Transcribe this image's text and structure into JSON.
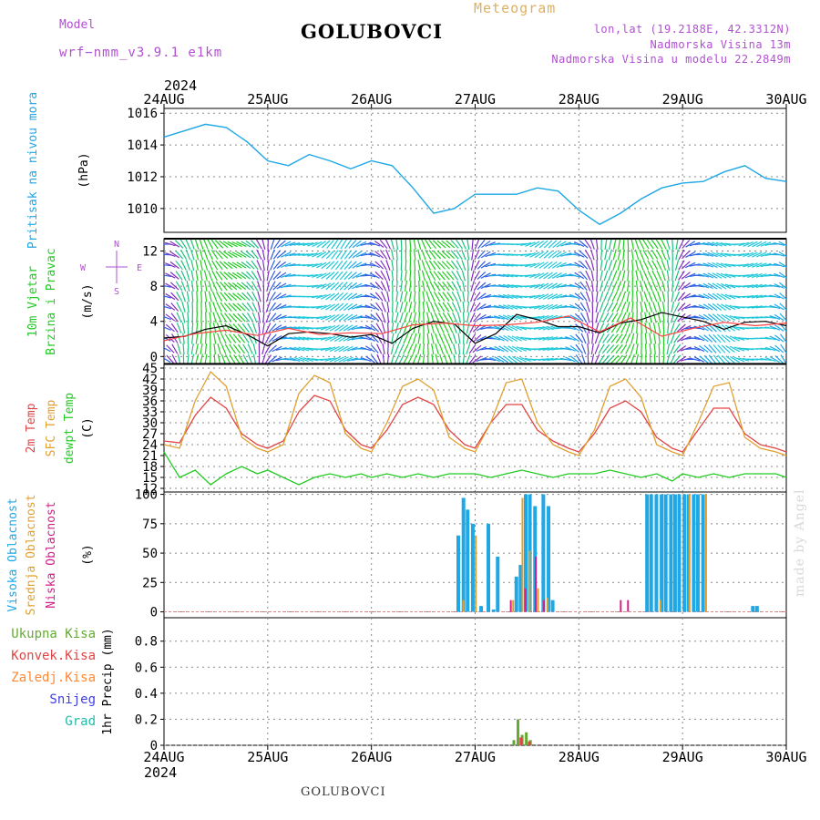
{
  "header": {
    "model_label": "Model",
    "model_name": "wrf−nmm_v3.9.1 e1km",
    "title": "GOLUBOVCI",
    "meteogram_label": "Meteogram",
    "lonlat": "lon,lat (19.2188E, 42.3312N)",
    "elevation": "Nadmorska Visina 13m",
    "model_elevation": "Nadmorska Visina u modelu 22.2849m",
    "footer_station": "GOLUBOVCI",
    "watermark": "made by Angel"
  },
  "colors": {
    "pressure": "#1fa8e6",
    "temp2m": "#e04545",
    "sfc_temp": "#e0a030",
    "dewpoint": "#22cc22",
    "wind_speed": "#000000",
    "wind_gust": "#ff4040",
    "purple_text": "#b050d0",
    "high_cloud": "#1fa8e6",
    "mid_cloud": "#e0a030",
    "low_cloud": "#d0208a",
    "total_precip": "#66aa33",
    "conv_precip": "#e04545",
    "frozen_precip": "#ff8833",
    "snow": "#4040e0",
    "hail": "#22bbaa"
  },
  "chart_data": [
    {
      "type": "line",
      "panel": "pressure",
      "ylabel_lines": [
        "Pritisak na nivou mora"
      ],
      "unit": "(hPa)",
      "x_ticks": [
        "24AUG",
        "25AUG",
        "26AUG",
        "27AUG",
        "28AUG",
        "29AUG",
        "30AUG"
      ],
      "x_year": "2024",
      "ylim": [
        1008.5,
        1016.3
      ],
      "yticks": [
        1010,
        1012,
        1014,
        1016
      ],
      "series": [
        {
          "color": "#1fa8e6",
          "x": [
            0,
            0.2,
            0.4,
            0.6,
            0.8,
            1,
            1.2,
            1.4,
            1.6,
            1.8,
            2,
            2.2,
            2.4,
            2.6,
            2.8,
            3,
            3.2,
            3.4,
            3.6,
            3.8,
            4,
            4.2,
            4.4,
            4.6,
            4.8,
            5,
            5.2,
            5.4,
            5.6,
            5.8,
            6
          ],
          "y": [
            1014.5,
            1014.9,
            1015.3,
            1015.1,
            1014.2,
            1013.0,
            1012.7,
            1013.4,
            1013.0,
            1012.5,
            1013.0,
            1012.7,
            1011.3,
            1009.7,
            1010.0,
            1010.9,
            1010.9,
            1010.9,
            1011.3,
            1011.1,
            1009.9,
            1009.0,
            1009.7,
            1010.6,
            1011.3,
            1011.6,
            1011.7,
            1012.3,
            1012.7,
            1011.9,
            1011.7
          ]
        }
      ]
    },
    {
      "type": "line",
      "panel": "wind",
      "ylabel_lines": [
        "10m Vjetar",
        "Brzina i Pravac"
      ],
      "unit": "(m/s)",
      "ylim": [
        -0.9,
        13.4
      ],
      "yticks": [
        0,
        4,
        8,
        12
      ],
      "compass": {
        "n": "N",
        "e": "E",
        "w": "W",
        "s": "S"
      },
      "series": [
        {
          "name": "speed",
          "color": "#000000",
          "x": [
            0,
            0.2,
            0.4,
            0.6,
            0.8,
            1,
            1.2,
            1.4,
            1.6,
            1.8,
            2,
            2.2,
            2.4,
            2.6,
            2.8,
            3,
            3.2,
            3.4,
            3.6,
            3.8,
            4,
            4.2,
            4.4,
            4.6,
            4.8,
            5,
            5.2,
            5.4,
            5.6,
            5.8,
            6
          ],
          "y": [
            2.1,
            2.3,
            3.1,
            3.5,
            2.5,
            1.2,
            2.6,
            2.8,
            2.6,
            2.2,
            2.5,
            1.5,
            3.2,
            4.0,
            3.7,
            1.5,
            2.6,
            4.8,
            4.2,
            3.4,
            3.4,
            2.7,
            3.8,
            4.2,
            5.0,
            4.5,
            4.0,
            3.1,
            3.9,
            4.0,
            3.5
          ]
        },
        {
          "name": "gust",
          "color": "#ff4040",
          "x": [
            0,
            0.3,
            0.6,
            0.9,
            1.2,
            1.5,
            1.8,
            2.1,
            2.4,
            2.7,
            3,
            3.3,
            3.6,
            3.9,
            4.2,
            4.5,
            4.8,
            5.1,
            5.4,
            5.7,
            6
          ],
          "y": [
            1.8,
            2.6,
            3.0,
            2.4,
            3.2,
            2.5,
            2.7,
            2.6,
            3.6,
            3.8,
            3.5,
            3.6,
            3.9,
            4.6,
            2.8,
            4.4,
            2.3,
            3.2,
            3.9,
            3.5,
            3.8
          ]
        }
      ]
    },
    {
      "type": "line",
      "panel": "temperature",
      "ylabel_lines": [
        "2m Temp",
        "SFC Temp",
        "dewpt Temp"
      ],
      "unit": "(C)",
      "ylim": [
        11,
        46
      ],
      "yticks": [
        12,
        15,
        18,
        21,
        24,
        27,
        30,
        33,
        36,
        39,
        42,
        45
      ],
      "series": [
        {
          "name": "2m Temp",
          "color": "#e04545",
          "x": [
            0,
            0.15,
            0.3,
            0.45,
            0.6,
            0.75,
            0.9,
            1,
            1.15,
            1.3,
            1.45,
            1.6,
            1.75,
            1.9,
            2,
            2.15,
            2.3,
            2.45,
            2.6,
            2.75,
            2.9,
            3,
            3.15,
            3.3,
            3.45,
            3.6,
            3.75,
            3.9,
            4,
            4.15,
            4.3,
            4.45,
            4.6,
            4.75,
            4.9,
            5,
            5.15,
            5.3,
            5.45,
            5.6,
            5.75,
            5.9,
            6
          ],
          "y": [
            25,
            24.5,
            32,
            37,
            34,
            27,
            24,
            23,
            25,
            33,
            37.5,
            36,
            28,
            24,
            23,
            28,
            35,
            37,
            35,
            28,
            24,
            23,
            30,
            35,
            35,
            28,
            25,
            23,
            22,
            27,
            34,
            36,
            33,
            26,
            23,
            22,
            28,
            34,
            34,
            27,
            24,
            23,
            22
          ]
        },
        {
          "name": "SFC Temp",
          "color": "#e0a030",
          "x": [
            0,
            0.15,
            0.3,
            0.45,
            0.6,
            0.75,
            0.9,
            1,
            1.15,
            1.3,
            1.45,
            1.6,
            1.75,
            1.9,
            2,
            2.15,
            2.3,
            2.45,
            2.6,
            2.75,
            2.9,
            3,
            3.15,
            3.3,
            3.45,
            3.6,
            3.75,
            3.9,
            4,
            4.15,
            4.3,
            4.45,
            4.6,
            4.75,
            4.9,
            5,
            5.15,
            5.3,
            5.45,
            5.6,
            5.75,
            5.9,
            6
          ],
          "y": [
            24,
            23,
            36,
            44,
            40,
            26,
            23,
            22,
            24,
            38,
            43,
            41,
            27,
            23,
            22,
            30,
            40,
            42,
            39,
            26,
            23,
            22,
            30,
            41,
            42,
            30,
            24,
            22,
            21,
            28,
            40,
            42,
            37,
            24,
            22,
            21,
            30,
            40,
            41,
            26,
            23,
            22,
            21
          ]
        },
        {
          "name": "dewpt Temp",
          "color": "#22cc22",
          "x": [
            0,
            0.15,
            0.3,
            0.45,
            0.6,
            0.75,
            0.9,
            1,
            1.15,
            1.3,
            1.45,
            1.6,
            1.75,
            1.9,
            2,
            2.15,
            2.3,
            2.45,
            2.6,
            2.75,
            2.9,
            3,
            3.15,
            3.3,
            3.45,
            3.6,
            3.75,
            3.9,
            4,
            4.15,
            4.3,
            4.45,
            4.6,
            4.75,
            4.9,
            5,
            5.15,
            5.3,
            5.45,
            5.6,
            5.75,
            5.9,
            6
          ],
          "y": [
            22,
            15,
            17,
            13,
            16,
            18,
            16,
            17,
            15,
            13,
            15,
            16,
            15,
            16,
            15,
            16,
            15,
            16,
            15,
            16,
            16,
            16,
            15,
            16,
            17,
            16,
            15,
            16,
            16,
            16,
            17,
            16,
            15,
            16,
            14,
            16,
            15,
            16,
            15,
            16,
            16,
            16,
            15
          ]
        }
      ]
    },
    {
      "type": "bar",
      "panel": "cloud",
      "ylabel_lines": [
        "Visoka Oblacnost",
        "Srednja Oblacnost",
        "Niska Oblacnost"
      ],
      "unit": "(%)",
      "ylim": [
        -5,
        102
      ],
      "yticks": [
        0,
        25,
        50,
        75,
        100
      ],
      "series": [
        {
          "name": "Visoka Oblacnost",
          "color": "#1fa8e6",
          "x": [
            2.82,
            2.87,
            2.91,
            2.96,
            3.04,
            3.11,
            3.16,
            3.2,
            3.38,
            3.42,
            3.47,
            3.51,
            3.56,
            3.64,
            3.69,
            3.73,
            4.64,
            4.68,
            4.73,
            4.78,
            4.82,
            4.87,
            4.91,
            4.95,
            5.0,
            5.04,
            5.09,
            5.13,
            5.18,
            5.66,
            5.7
          ],
          "values": [
            65,
            97,
            87,
            75,
            5,
            75,
            2,
            47,
            30,
            40,
            100,
            100,
            90,
            100,
            90,
            10,
            100,
            100,
            100,
            100,
            100,
            100,
            100,
            100,
            100,
            100,
            100,
            100,
            100,
            5,
            5
          ]
        },
        {
          "name": "Srednja Oblacnost",
          "color": "#e0a030",
          "x": [
            2.86,
            2.98,
            3.34,
            3.43,
            3.5,
            3.58,
            3.67,
            4.76,
            5.04,
            5.2
          ],
          "values": [
            10,
            65,
            10,
            97,
            52,
            20,
            12,
            10,
            100,
            100
          ]
        },
        {
          "name": "Niska Oblacnost",
          "color": "#d0208a",
          "x": [
            3.3,
            3.44,
            3.54,
            3.62,
            4.36,
            4.43
          ],
          "values": [
            10,
            20,
            47,
            10,
            10,
            10
          ]
        }
      ]
    },
    {
      "type": "bar",
      "panel": "precip",
      "ylabel_lines": [
        "Ukupna Kisa",
        "Konvek.Kisa",
        "Zaledj.Kisa",
        "Snijeg",
        "Grad"
      ],
      "unit": "1hr Precip (mm)",
      "ylim": [
        0,
        0.98
      ],
      "yticks": [
        0,
        0.2,
        0.4,
        0.6,
        0.8
      ],
      "series": [
        {
          "name": "Ukupna Kisa",
          "color": "#66aa33",
          "x": [
            3.36,
            3.4,
            3.44,
            3.48,
            3.52
          ],
          "values": [
            0.04,
            0.2,
            0.08,
            0.1,
            0.04
          ]
        },
        {
          "name": "Konvek.Kisa",
          "color": "#e04545",
          "x": [
            3.42,
            3.5
          ],
          "values": [
            0.06,
            0.03
          ]
        }
      ]
    }
  ]
}
